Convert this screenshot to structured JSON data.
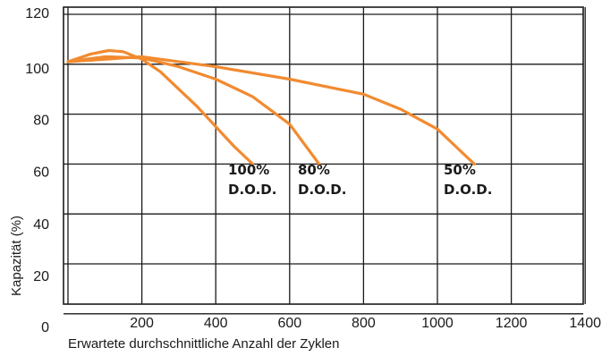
{
  "chart_data": {
    "type": "line",
    "title": "",
    "xlabel": "Erwartete durchschnittliche Anzahl der Zyklen",
    "ylabel": "Kapazität (%)",
    "xlim": [
      0,
      1400
    ],
    "ylim": [
      0,
      120
    ],
    "x_ticks": [
      "200",
      "400",
      "600",
      "800",
      "1000",
      "1200",
      "1400"
    ],
    "y_ticks": [
      "120",
      "100",
      "80",
      "60",
      "40",
      "20",
      "0"
    ],
    "grid": true,
    "colors": {
      "series": "#f28a30",
      "grid": "#1a1a1a",
      "text": "#1a1a1a"
    },
    "series": [
      {
        "label_lines": [
          "100%",
          "D.O.D."
        ],
        "points": [
          [
            0,
            101
          ],
          [
            60,
            104
          ],
          [
            110,
            105.5
          ],
          [
            150,
            105
          ],
          [
            200,
            102
          ],
          [
            250,
            97
          ],
          [
            300,
            90
          ],
          [
            350,
            83
          ],
          [
            400,
            75
          ],
          [
            450,
            67
          ],
          [
            500,
            60
          ]
        ]
      },
      {
        "label_lines": [
          "80%",
          "D.O.D."
        ],
        "points": [
          [
            0,
            101
          ],
          [
            100,
            103
          ],
          [
            200,
            102.5
          ],
          [
            300,
            99
          ],
          [
            400,
            94
          ],
          [
            500,
            87
          ],
          [
            600,
            76
          ],
          [
            650,
            66
          ],
          [
            680,
            60
          ]
        ]
      },
      {
        "label_lines": [
          "50%",
          "D.O.D."
        ],
        "points": [
          [
            0,
            101
          ],
          [
            200,
            103
          ],
          [
            400,
            99
          ],
          [
            600,
            94
          ],
          [
            800,
            88
          ],
          [
            900,
            82
          ],
          [
            1000,
            74
          ],
          [
            1050,
            67
          ],
          [
            1100,
            60
          ]
        ]
      }
    ]
  }
}
